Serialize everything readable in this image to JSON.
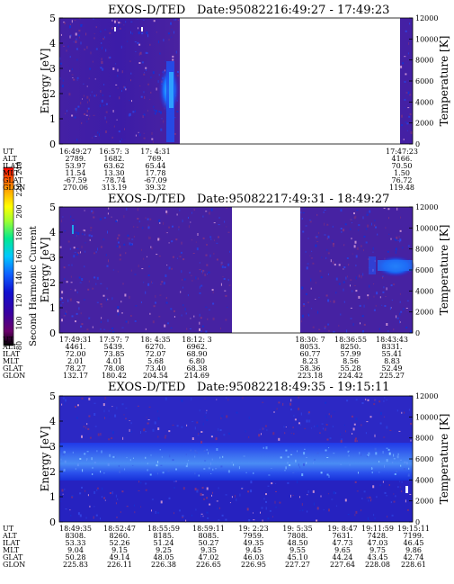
{
  "panels": [
    {
      "title_prefix": "EXOS-D/TED",
      "date": "Date:950822",
      "time_range": "16:49:27 - 17:49:23",
      "ylabel": "Energy [eV]",
      "ylim": [
        0,
        5
      ],
      "yticks": [
        "0",
        "1",
        "2",
        "3",
        "4",
        "5"
      ],
      "right_label": "Temperature [K]",
      "right_ticks": [
        "0",
        "2000",
        "4000",
        "6000",
        "8000",
        "10000",
        "12000"
      ],
      "row_labels": [
        "UT",
        "ALT",
        "ILAT",
        "MLT",
        "GLAT",
        "GLON"
      ],
      "ephemeris_columns": [
        {
          "values": [
            "16:49:27",
            "2789.",
            "53.97",
            "11.54",
            "-67.59",
            "270.06"
          ]
        },
        {
          "values": [
            "16:57: 3",
            "1682.",
            "63.62",
            "13.30",
            "-78.74",
            "313.19"
          ]
        },
        {
          "values": [
            "17: 4:31",
            "769.",
            "65.44",
            "17.78",
            "-67.09",
            "39.32"
          ]
        },
        {
          "values": [
            "17:47:23",
            "4166.",
            "70.50",
            "1.50",
            "76.72",
            "119.48"
          ]
        }
      ],
      "data_gaps_ut": [
        [
          "17: 5",
          "17:47"
        ]
      ]
    },
    {
      "title_prefix": "EXOS-D/TED",
      "date": "Date:950822",
      "time_range": "17:49:31 - 18:49:27",
      "ylabel": "Energy [eV]",
      "ylim": [
        0,
        5
      ],
      "yticks": [
        "0",
        "1",
        "2",
        "3",
        "4",
        "5"
      ],
      "right_label": "Temperature [K]",
      "right_ticks": [
        "0",
        "2000",
        "4000",
        "6000",
        "8000",
        "10000",
        "12000"
      ],
      "row_labels": [
        "UT",
        "ALT",
        "ILAT",
        "MLT",
        "GLAT",
        "GLON"
      ],
      "ephemeris_columns": [
        {
          "values": [
            "17:49:31",
            "4461.",
            "72.00",
            "2.01",
            "78.27",
            "132.17"
          ]
        },
        {
          "values": [
            "17:57: 7",
            "5439.",
            "73.85",
            "4.01",
            "78.08",
            "180.42"
          ]
        },
        {
          "values": [
            "18: 4:35",
            "6270.",
            "72.07",
            "5.68",
            "73.40",
            "204.54"
          ]
        },
        {
          "values": [
            "18:12: 3",
            "6962.",
            "68.90",
            "6.80",
            "68.38",
            "214.69"
          ]
        },
        {
          "values": [
            "18:30: 7",
            "8053.",
            "60.77",
            "8.23",
            "58.36",
            "223.18"
          ]
        },
        {
          "values": [
            "18:36:55",
            "8250.",
            "57.99",
            "8.56",
            "55.28",
            "224.42"
          ]
        },
        {
          "values": [
            "18:43:43",
            "8331.",
            "55.41",
            "8.83",
            "52.49",
            "225.27"
          ]
        }
      ],
      "data_gaps_ut": [
        [
          "18:13",
          "18:30"
        ]
      ]
    },
    {
      "title_prefix": "EXOS-D/TED",
      "date": "Date:950822",
      "time_range": "18:49:35 - 19:15:11",
      "ylabel": "Energy [eV]",
      "ylim": [
        0,
        5
      ],
      "yticks": [
        "0",
        "1",
        "2",
        "3",
        "4",
        "5"
      ],
      "right_label": "Temperature [K]",
      "right_ticks": [
        "0",
        "2000",
        "4000",
        "6000",
        "8000",
        "10000",
        "12000"
      ],
      "row_labels": [
        "UT",
        "ALT",
        "ILAT",
        "MLT",
        "GLAT",
        "GLON"
      ],
      "ephemeris_columns": [
        {
          "values": [
            "18:49:35",
            "8308.",
            "53.33",
            "9.04",
            "50.28",
            "225.83"
          ]
        },
        {
          "values": [
            "18:52:47",
            "8260.",
            "52.26",
            "9.15",
            "49.14",
            "226.11"
          ]
        },
        {
          "values": [
            "18:55:59",
            "8185.",
            "51.24",
            "9.25",
            "48.05",
            "226.38"
          ]
        },
        {
          "values": [
            "18:59:11",
            "8085.",
            "50.27",
            "9.35",
            "47.02",
            "226.65"
          ]
        },
        {
          "values": [
            "19: 2:23",
            "7959.",
            "49.35",
            "9.45",
            "46.03",
            "226.95"
          ]
        },
        {
          "values": [
            "19: 5:35",
            "7808.",
            "48.50",
            "9.55",
            "45.10",
            "227.27"
          ]
        },
        {
          "values": [
            "19: 8:47",
            "7631.",
            "47.73",
            "9.65",
            "44.24",
            "227.64"
          ]
        },
        {
          "values": [
            "19:11:59",
            "7428.",
            "47.03",
            "9.75",
            "43.45",
            "228.08"
          ]
        },
        {
          "values": [
            "19:15:11",
            "7199.",
            "46.45",
            "9.86",
            "42.74",
            "228.61"
          ]
        }
      ],
      "data_gaps_ut": []
    }
  ],
  "colorbar": {
    "label": "Second Harmonic Current",
    "ticks": [
      "80",
      "100",
      "120",
      "140",
      "160",
      "180",
      "200",
      "220",
      "240"
    ],
    "colors": [
      "#000000",
      "#6a006a",
      "#3a00a0",
      "#1010d0",
      "#1060ff",
      "#00c8ff",
      "#00e890",
      "#a0ff30",
      "#ffff00",
      "#ffb000",
      "#ff6000",
      "#ff0000"
    ]
  },
  "chart_data": [
    {
      "type": "heatmap",
      "title": "EXOS-D/TED Date:950822 16:49:27 - 17:49:23",
      "ylabel": "Energy [eV]",
      "ylim": [
        0,
        5
      ],
      "right_axis": {
        "label": "Temperature [K]",
        "range": [
          0,
          12000
        ]
      },
      "color_scale": {
        "label": "Second Harmonic Current",
        "range": [
          80,
          240
        ]
      },
      "features": [
        {
          "ut": "17: 2",
          "energy_range": [
            0,
            4.0
          ],
          "level": "elevated (~140-180)"
        }
      ]
    },
    {
      "type": "heatmap",
      "title": "EXOS-D/TED Date:950822 17:49:31 - 18:49:27",
      "ylabel": "Energy [eV]",
      "ylim": [
        0,
        5
      ],
      "right_axis": {
        "label": "Temperature [K]",
        "range": [
          0,
          12000
        ]
      },
      "color_scale": {
        "label": "Second Harmonic Current",
        "range": [
          80,
          240
        ]
      },
      "features": [
        {
          "ut": "18:44-18:49",
          "energy_range": [
            2.6,
            3.4
          ],
          "level": "elevated (~150-170)"
        }
      ]
    },
    {
      "type": "heatmap",
      "title": "EXOS-D/TED Date:950822 18:49:35 - 19:15:11",
      "ylabel": "Energy [eV]",
      "ylim": [
        0,
        5
      ],
      "right_axis": {
        "label": "Temperature [K]",
        "range": [
          0,
          12000
        ]
      },
      "color_scale": {
        "label": "Second Harmonic Current",
        "range": [
          80,
          240
        ]
      },
      "features": [
        {
          "ut": "18:49-19:15",
          "energy_range": [
            1.8,
            3.0
          ],
          "level": "band (~130-150)"
        }
      ]
    }
  ]
}
